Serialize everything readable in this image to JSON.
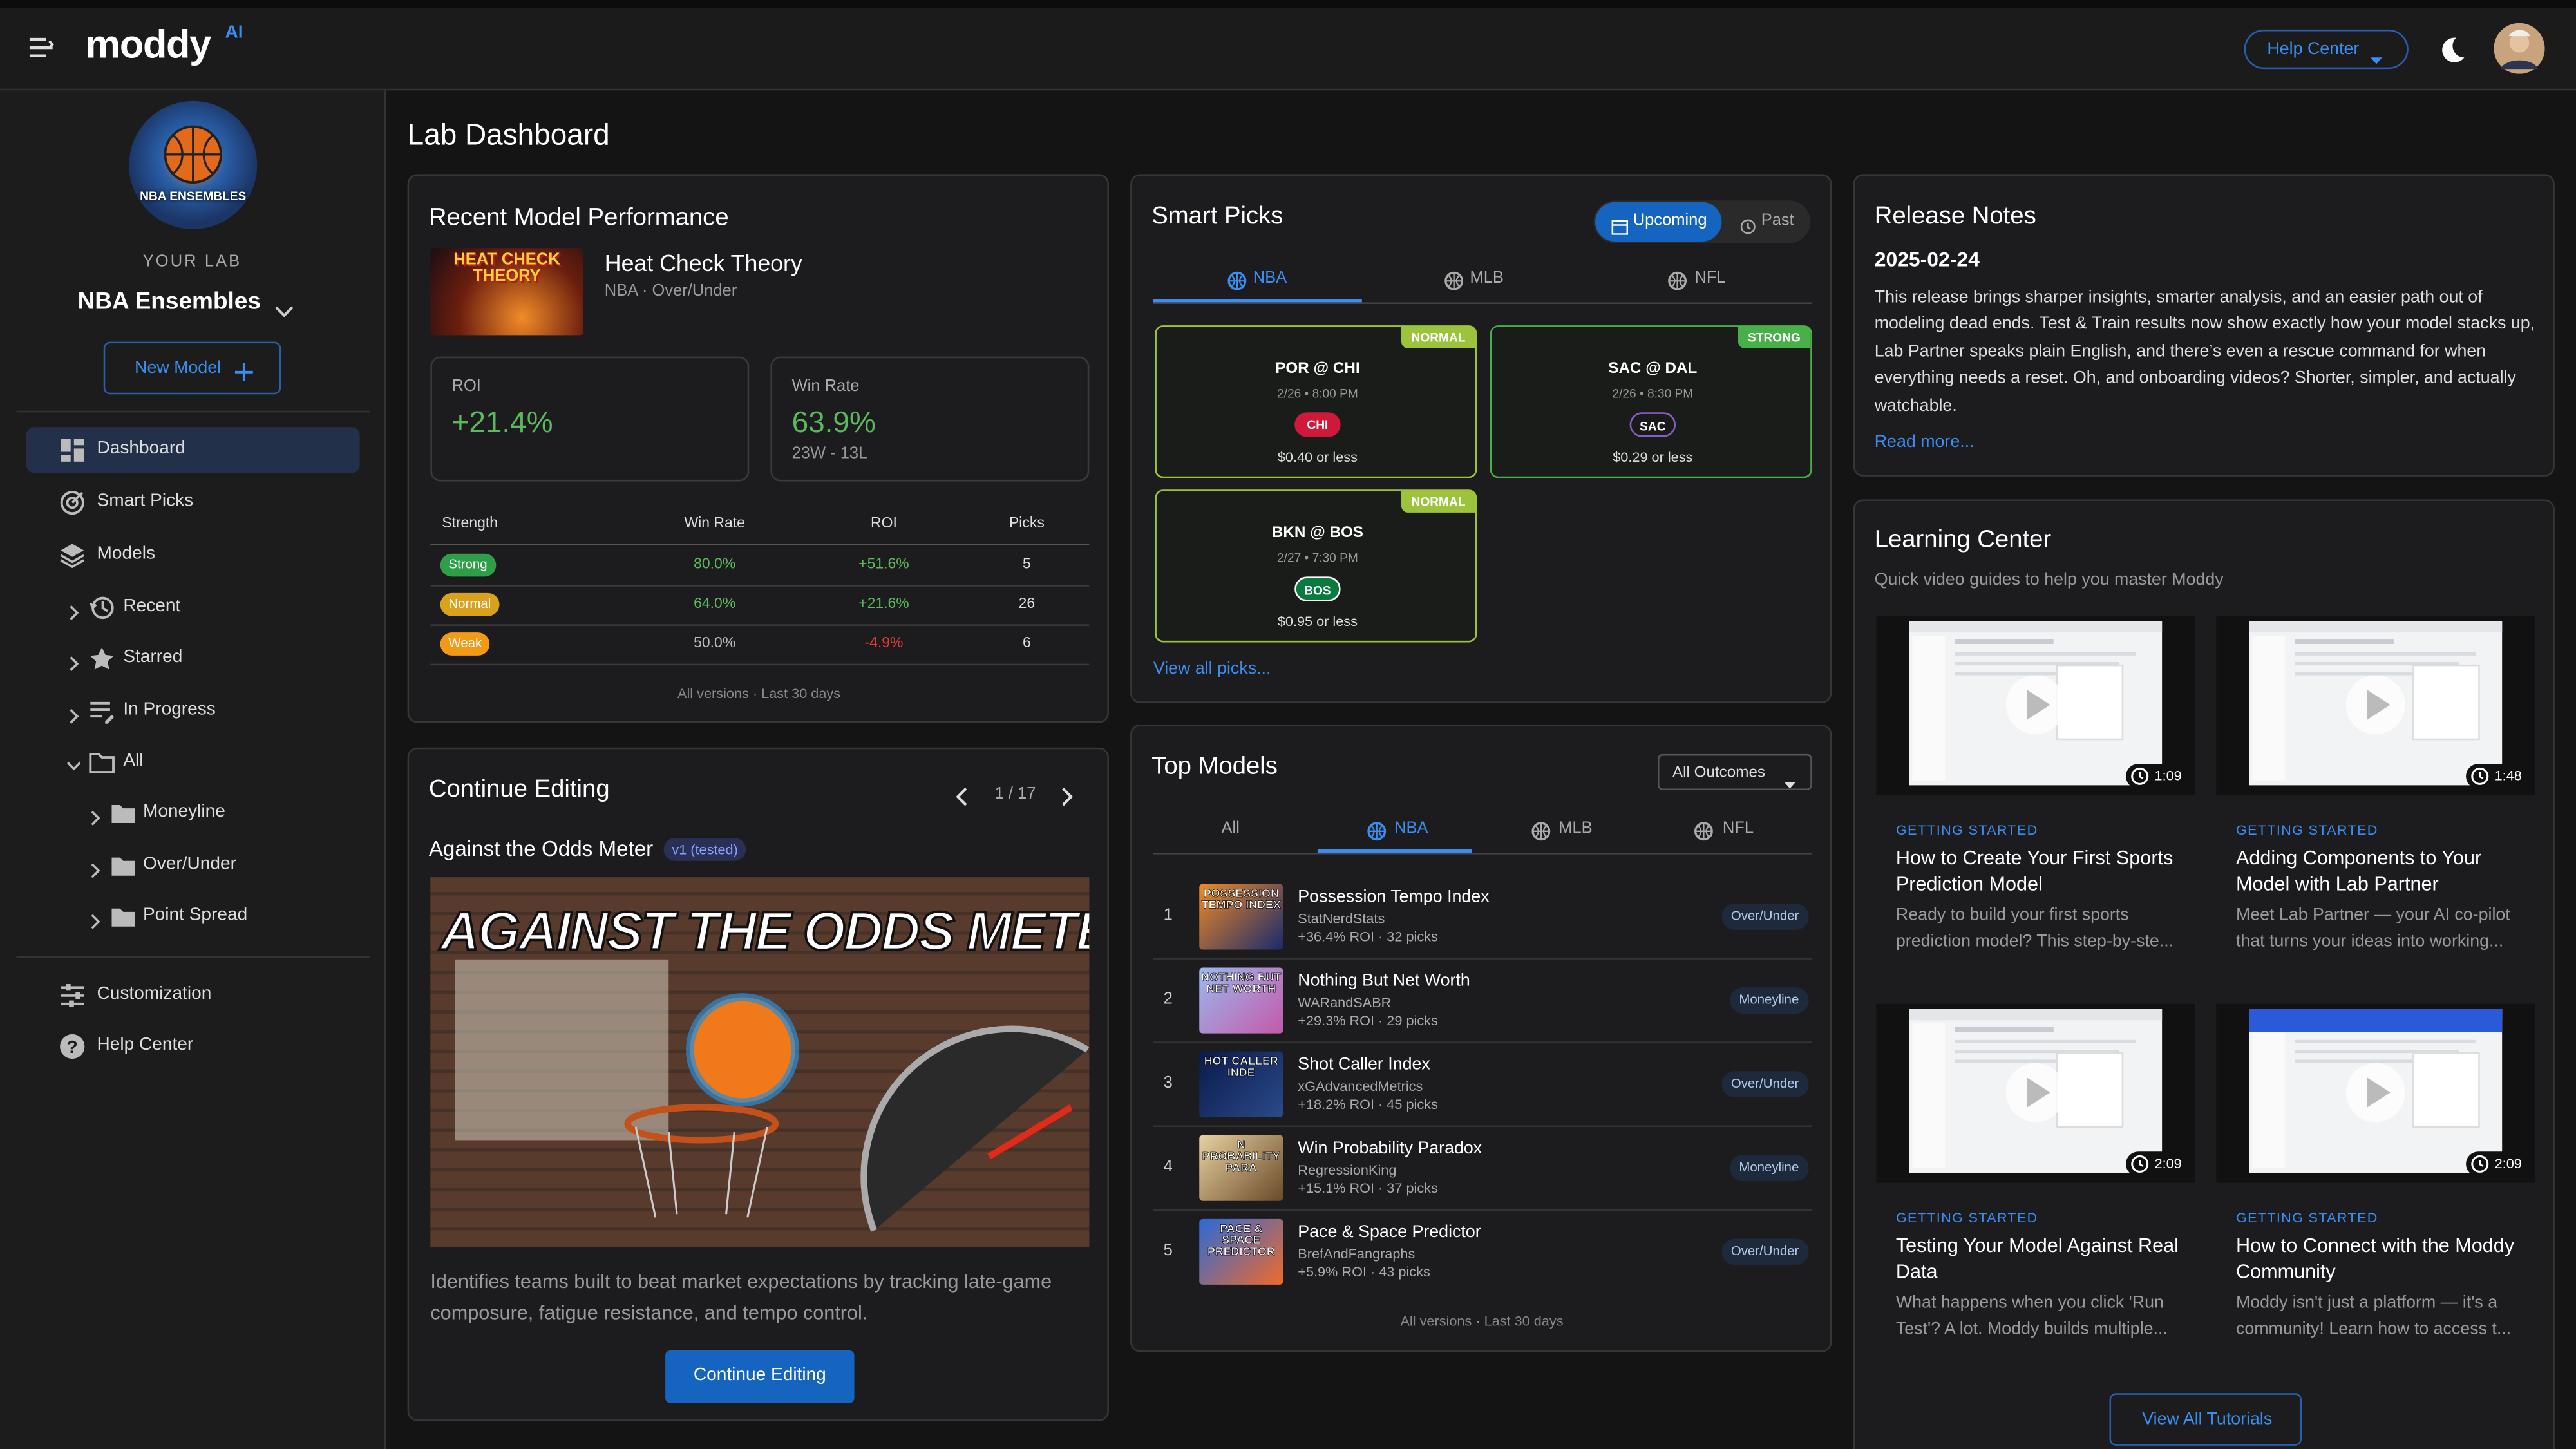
{
  "header": {
    "brand": "moddy",
    "brand_sup": "AI",
    "help_button": "Help Center"
  },
  "sidebar": {
    "logo_text": "NBA ENSEMBLES",
    "lab_label": "YOUR LAB",
    "lab_name": "NBA Ensembles",
    "new_model": "New Model",
    "nav": [
      {
        "label": "Dashboard"
      },
      {
        "label": "Smart Picks"
      },
      {
        "label": "Models"
      },
      {
        "label": "Recent"
      },
      {
        "label": "Starred"
      },
      {
        "label": "In Progress"
      },
      {
        "label": "All"
      },
      {
        "label": "Moneyline"
      },
      {
        "label": "Over/Under"
      },
      {
        "label": "Point Spread"
      }
    ],
    "bottom_nav": [
      {
        "label": "Customization"
      },
      {
        "label": "Help Center"
      }
    ]
  },
  "page_title": "Lab Dashboard",
  "performance": {
    "title": "Recent Model Performance",
    "thumb_text": "HEAT CHECK THEORY",
    "model_name": "Heat Check Theory",
    "model_meta": "NBA · Over/Under",
    "roi_label": "ROI",
    "roi": "+21.4%",
    "win_label": "Win Rate",
    "win_rate": "63.9%",
    "record": "23W - 13L",
    "columns": [
      "Strength",
      "Win Rate",
      "ROI",
      "Picks"
    ],
    "rows": [
      [
        "Strong",
        "80.0%",
        "+51.6%",
        "5"
      ],
      [
        "Normal",
        "64.0%",
        "+21.6%",
        "26"
      ],
      [
        "Weak",
        "50.0%",
        "-4.9%",
        "6"
      ]
    ],
    "footer": "All versions · Last 30 days"
  },
  "continue_editing": {
    "title": "Continue Editing",
    "pager": "1 / 17",
    "model_name": "Against the Odds Meter",
    "version": "v1 (tested)",
    "image_text": "AGAINST THE ODDS METER",
    "description": "Identifies teams built to beat market expectations by tracking late-game composure, fatigue resistance, and tempo control.",
    "button": "Continue Editing"
  },
  "smart_picks": {
    "title": "Smart Picks",
    "toggle": [
      "Upcoming",
      "Past"
    ],
    "tabs": [
      "NBA",
      "MLB",
      "NFL"
    ],
    "cards": [
      {
        "badge": "NORMAL",
        "matchup": "POR @ CHI",
        "time": "2/26 • 8:00 PM",
        "pick": "CHI",
        "price": "$0.40 or less"
      },
      {
        "badge": "STRONG",
        "matchup": "SAC @ DAL",
        "time": "2/26 • 8:30 PM",
        "pick": "SAC",
        "price": "$0.29 or less"
      },
      {
        "badge": "NORMAL",
        "matchup": "BKN @ BOS",
        "time": "2/27 • 7:30 PM",
        "pick": "BOS",
        "price": "$0.95 or less"
      }
    ],
    "link": "View all picks..."
  },
  "top_models": {
    "title": "Top Models",
    "filter": "All Outcomes",
    "tabs": [
      "All",
      "NBA",
      "MLB",
      "NFL"
    ],
    "rows": [
      {
        "rank": "1",
        "thumb": "POSSESSION TEMPO INDEX",
        "name": "Possession Tempo Index",
        "author": "StatNerdStats",
        "stats": "+36.4% ROI · 32 picks",
        "tag": "Over/Under"
      },
      {
        "rank": "2",
        "thumb": "NOTHING BUT NET WORTH",
        "name": "Nothing But Net Worth",
        "author": "WARandSABR",
        "stats": "+29.3% ROI · 29 picks",
        "tag": "Moneyline"
      },
      {
        "rank": "3",
        "thumb": "HOT CALLER INDE",
        "name": "Shot Caller Index",
        "author": "xGAdvancedMetrics",
        "stats": "+18.2% ROI · 45 picks",
        "tag": "Over/Under"
      },
      {
        "rank": "4",
        "thumb": "N PROBABILITY PARA",
        "name": "Win Probability Paradox",
        "author": "RegressionKing",
        "stats": "+15.1% ROI · 37 picks",
        "tag": "Moneyline"
      },
      {
        "rank": "5",
        "thumb": "PACE & SPACE PREDICTOR",
        "name": "Pace & Space Predictor",
        "author": "BrefAndFangraphs",
        "stats": "+5.9% ROI · 43 picks",
        "tag": "Over/Under"
      }
    ],
    "footer": "All versions · Last 30 days"
  },
  "release_notes": {
    "title": "Release Notes",
    "date": "2025-02-24",
    "body": "This release brings sharper insights, smarter analysis, and an easier path out of modeling dead ends. Test & Train results now show exactly how your model stacks up, Lab Partner speaks plain English, and there’s even a rescue command for when everything needs a reset. Oh, and onboarding videos? Shorter, simpler, and actually watchable.",
    "link": "Read more..."
  },
  "learning_center": {
    "title": "Learning Center",
    "subtitle": "Quick video guides to help you master Moddy",
    "videos": [
      {
        "duration": "1:09",
        "category": "GETTING STARTED",
        "title": "How to Create Your First Sports Prediction Model",
        "description": "Ready to build your first sports prediction model? This step-by-ste..."
      },
      {
        "duration": "1:48",
        "category": "GETTING STARTED",
        "title": "Adding Components to Your Model with Lab Partner",
        "description": "Meet Lab Partner — your AI co-pilot that turns your ideas into working..."
      },
      {
        "duration": "2:09",
        "category": "GETTING STARTED",
        "title": "Testing Your Model Against Real Data",
        "description": "What happens when you click 'Run Test'? A lot. Moddy builds multiple..."
      },
      {
        "duration": "2:09",
        "category": "GETTING STARTED",
        "title": "How to Connect with the Moddy Community",
        "description": "Moddy isn't just a platform — it's a community! Learn how to access t..."
      }
    ],
    "button": "View All Tutorials"
  }
}
